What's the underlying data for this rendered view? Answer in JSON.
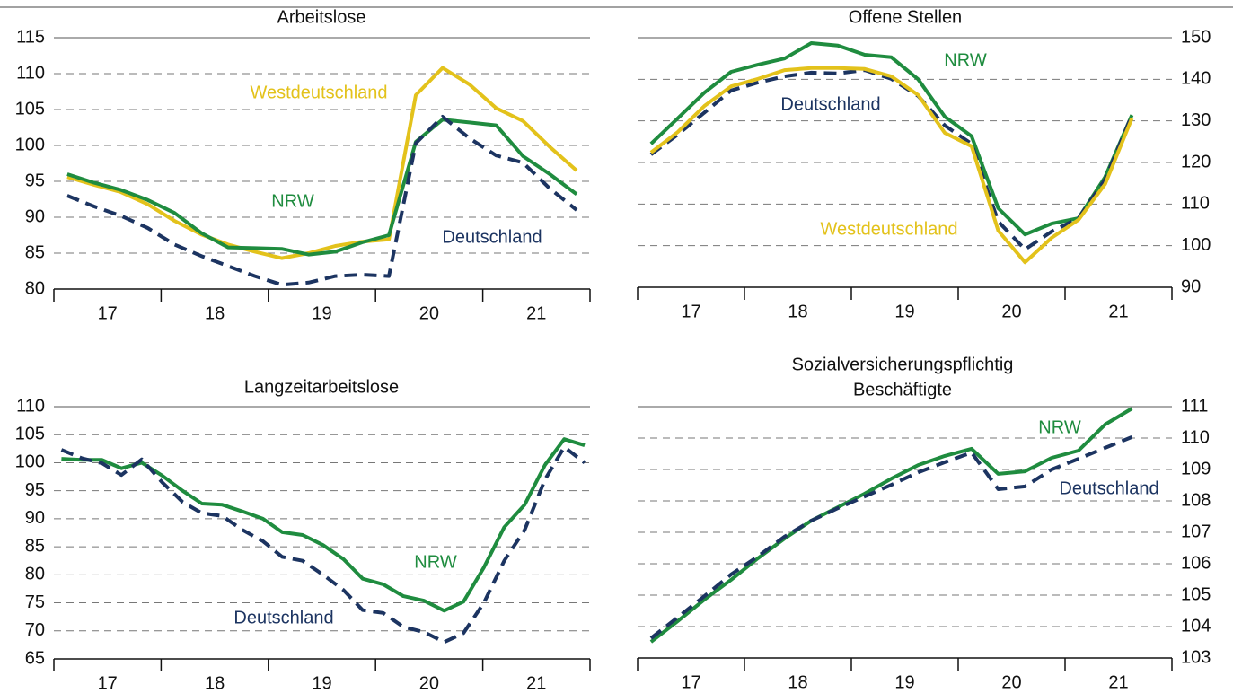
{
  "chart_data": [
    {
      "type": "line",
      "title": "Arbeitslose",
      "yaxis": "left",
      "grid": true,
      "xlim": [
        2017,
        2022
      ],
      "xticks": [
        {
          "value": 2017.5,
          "label": "17"
        },
        {
          "value": 2018.5,
          "label": "18"
        },
        {
          "value": 2019.5,
          "label": "19"
        },
        {
          "value": 2020.5,
          "label": "20"
        },
        {
          "value": 2021.5,
          "label": "21"
        }
      ],
      "ylim": [
        80,
        115
      ],
      "yticks": [
        80,
        85,
        90,
        95,
        100,
        105,
        110,
        115
      ],
      "x": [
        2017.125,
        2017.375,
        2017.625,
        2017.875,
        2018.125,
        2018.375,
        2018.625,
        2018.875,
        2019.125,
        2019.375,
        2019.625,
        2019.875,
        2020.125,
        2020.375,
        2020.625,
        2020.875,
        2021.125,
        2021.375,
        2021.625,
        2021.875
      ],
      "series": [
        {
          "name": "Westdeutschland",
          "color": "#e3c21b",
          "dashed": false,
          "values": [
            95.6,
            94.5,
            93.5,
            91.8,
            89.5,
            87.6,
            86.2,
            85.2,
            84.3,
            85.0,
            86.0,
            86.6,
            86.9,
            107,
            110.8,
            108.5,
            105.2,
            103.4,
            99.8,
            96.5
          ]
        },
        {
          "name": "NRW",
          "color": "#1f8c3f",
          "dashed": false,
          "values": [
            96.0,
            94.8,
            93.8,
            92.4,
            90.6,
            87.8,
            85.8,
            85.7,
            85.6,
            84.8,
            85.2,
            86.5,
            87.5,
            100.5,
            103.6,
            103.2,
            102.8,
            98.5,
            96.0,
            93.2
          ]
        },
        {
          "name": "Deutschland",
          "color": "#1c3461",
          "dashed": true,
          "values": [
            93.0,
            91.5,
            90.2,
            88.5,
            86.2,
            84.6,
            83.2,
            81.8,
            80.6,
            80.9,
            81.8,
            82.0,
            81.8,
            100.3,
            104.0,
            101.0,
            98.6,
            97.6,
            94.0,
            91.0
          ]
        }
      ]
    },
    {
      "type": "line",
      "title": "Offene Stellen",
      "yaxis": "right",
      "grid": true,
      "xlim": [
        2017,
        2022
      ],
      "xticks": [
        {
          "value": 2017.5,
          "label": "17"
        },
        {
          "value": 2018.5,
          "label": "18"
        },
        {
          "value": 2019.5,
          "label": "19"
        },
        {
          "value": 2020.5,
          "label": "20"
        },
        {
          "value": 2021.5,
          "label": "21"
        }
      ],
      "ylim": [
        90,
        150
      ],
      "yticks": [
        90,
        100,
        110,
        120,
        130,
        140,
        150
      ],
      "x": [
        2017.125,
        2017.375,
        2017.625,
        2017.875,
        2018.125,
        2018.375,
        2018.625,
        2018.875,
        2019.125,
        2019.375,
        2019.625,
        2019.875,
        2020.125,
        2020.375,
        2020.625,
        2020.875,
        2021.125,
        2021.375,
        2021.625
      ],
      "series": [
        {
          "name": "NRW",
          "color": "#1f8c3f",
          "dashed": false,
          "values": [
            124.5,
            130.6,
            136.8,
            141.8,
            143.5,
            145,
            148.7,
            148.1,
            145.9,
            145.3,
            140,
            131,
            126.3,
            109,
            102.7,
            105.3,
            106.6,
            116.5,
            131.4
          ]
        },
        {
          "name": "Deutschland",
          "color": "#1c3461",
          "dashed": true,
          "values": [
            121.9,
            126.7,
            132,
            137.3,
            139.2,
            140.7,
            141.6,
            141.4,
            142.2,
            140.1,
            136,
            128.9,
            124.5,
            105.8,
            99.1,
            103.4,
            106.6,
            115.9,
            131.4
          ]
        },
        {
          "name": "Westdeutschland",
          "color": "#e3c21b",
          "dashed": false,
          "values": [
            122.4,
            127.3,
            133.6,
            138.3,
            140.1,
            142.2,
            142.7,
            142.7,
            142.5,
            140.7,
            136.2,
            127.1,
            123.9,
            103.6,
            96,
            101.9,
            106.2,
            114.8,
            130.6
          ]
        }
      ]
    },
    {
      "type": "line",
      "title": "Langzeitarbeitslose",
      "yaxis": "left",
      "grid": true,
      "xlim": [
        2017,
        2022
      ],
      "xticks": [
        {
          "value": 2017.5,
          "label": "17"
        },
        {
          "value": 2018.5,
          "label": "18"
        },
        {
          "value": 2019.5,
          "label": "19"
        },
        {
          "value": 2020.5,
          "label": "20"
        },
        {
          "value": 2021.5,
          "label": "21"
        }
      ],
      "ylim": [
        65,
        110
      ],
      "yticks": [
        65,
        70,
        75,
        80,
        85,
        90,
        95,
        100,
        105,
        110
      ],
      "x": [
        2017.07,
        2017.26,
        2017.45,
        2017.63,
        2017.82,
        2018.01,
        2018.2,
        2018.38,
        2018.57,
        2018.76,
        2018.95,
        2019.13,
        2019.32,
        2019.51,
        2019.7,
        2019.88,
        2020.07,
        2020.26,
        2020.45,
        2020.64,
        2020.82,
        2021.01,
        2021.2,
        2021.39,
        2021.58,
        2021.76,
        2021.95
      ],
      "series": [
        {
          "name": "NRW",
          "color": "#1f8c3f",
          "dashed": false,
          "values": [
            100.7,
            100.5,
            100.5,
            99,
            100,
            97.7,
            95,
            92.7,
            92.5,
            91.3,
            90,
            87.6,
            87.1,
            85.3,
            82.8,
            79.3,
            78.3,
            76.2,
            75.4,
            73.6,
            75.2,
            81.3,
            88.5,
            92.5,
            99.6,
            104.2,
            103.1
          ]
        },
        {
          "name": "Deutschland",
          "color": "#1c3461",
          "dashed": true,
          "values": [
            102.3,
            100.8,
            99.9,
            97.8,
            100.6,
            96.5,
            93,
            91,
            90.5,
            88,
            86,
            83.2,
            82.5,
            80,
            77.3,
            73.7,
            73.2,
            70.7,
            69.8,
            68,
            69.6,
            75,
            82.5,
            88,
            97,
            102.8,
            100
          ]
        }
      ]
    },
    {
      "type": "line",
      "title": [
        "Sozialversicherungspflichtig",
        "Beschäftigte"
      ],
      "yaxis": "right",
      "grid": true,
      "xlim": [
        2017,
        2022
      ],
      "xticks": [
        {
          "value": 2017.5,
          "label": "17"
        },
        {
          "value": 2018.5,
          "label": "18"
        },
        {
          "value": 2019.5,
          "label": "19"
        },
        {
          "value": 2020.5,
          "label": "20"
        },
        {
          "value": 2021.5,
          "label": "21"
        }
      ],
      "ylim": [
        103,
        111
      ],
      "yticks": [
        103,
        104,
        105,
        106,
        107,
        108,
        109,
        110,
        111
      ],
      "x": [
        2017.125,
        2017.375,
        2017.625,
        2017.875,
        2018.125,
        2018.375,
        2018.625,
        2018.875,
        2019.125,
        2019.375,
        2019.625,
        2019.875,
        2020.125,
        2020.375,
        2020.625,
        2020.875,
        2021.125,
        2021.375,
        2021.625
      ],
      "series": [
        {
          "name": "NRW",
          "color": "#1f8c3f",
          "dashed": false,
          "values": [
            103.51,
            104.17,
            104.86,
            105.49,
            106.17,
            106.8,
            107.37,
            107.8,
            108.23,
            108.71,
            109.14,
            109.43,
            109.66,
            108.86,
            108.94,
            109.37,
            109.6,
            110.43,
            110.94
          ]
        },
        {
          "name": "Deutschland",
          "color": "#1c3461",
          "dashed": true,
          "values": [
            103.63,
            104.29,
            104.97,
            105.66,
            106.23,
            106.86,
            107.37,
            107.77,
            108.14,
            108.51,
            108.91,
            109.23,
            109.54,
            108.37,
            108.46,
            109.0,
            109.34,
            109.69,
            110.03
          ]
        }
      ]
    }
  ]
}
